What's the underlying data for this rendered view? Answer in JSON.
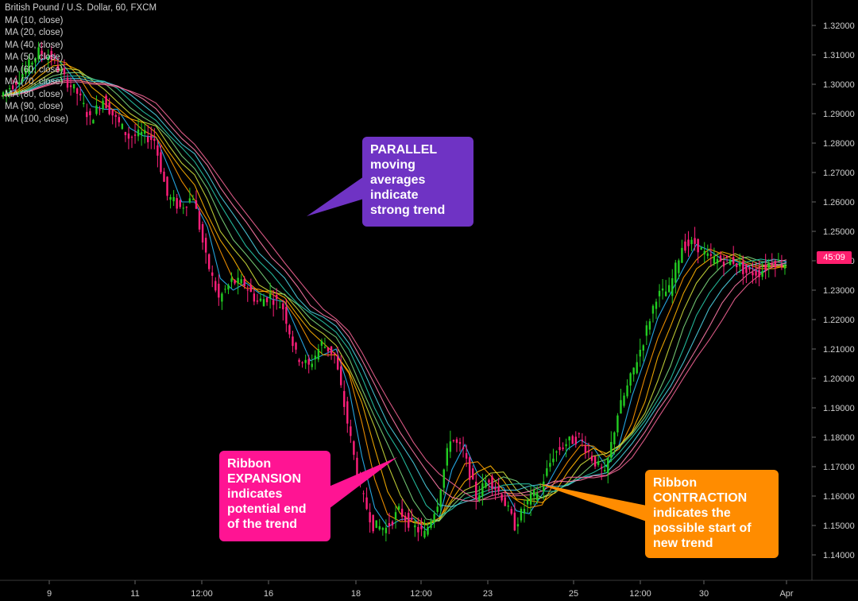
{
  "symbol_title": "British Pound / U.S. Dollar, 60, FXCM",
  "legend": [
    "MA (10, close)",
    "MA (20, close)",
    "MA (40, close)",
    "MA (50, close)",
    "MA (60, close)",
    "MA (70, close)",
    "MA (80, close)",
    "MA (90, close)",
    "MA (100, close)"
  ],
  "current_price_tag": "45:09",
  "annotations": {
    "parallel": [
      "PARALLEL",
      "moving",
      "averages",
      "indicate",
      "strong trend"
    ],
    "expansion": [
      "Ribbon",
      "EXPANSION",
      "indicates",
      "potential end",
      "of the trend"
    ],
    "contraction": [
      "Ribbon",
      "CONTRACTION",
      "indicates the",
      "possible start of",
      "new trend"
    ]
  },
  "colors": {
    "parallel_box": "#6f33c4",
    "expansion_box": "#ff1493",
    "contraction_box": "#ff8c00",
    "price_tag": "#ff1e6e",
    "candle_up": "#22cc22",
    "candle_down": "#ff1f7a"
  },
  "chart_data": {
    "type": "line",
    "title": "British Pound / U.S. Dollar, 60, FXCM",
    "x_tick_labels": [
      "9",
      "11",
      "12:00",
      "16",
      "18",
      "12:00",
      "23",
      "25",
      "12:00",
      "30",
      "Apr"
    ],
    "y_tick_labels": [
      "1.32000",
      "1.31000",
      "1.30000",
      "1.29000",
      "1.28000",
      "1.27000",
      "1.26000",
      "1.25000",
      "1.24000",
      "1.23000",
      "1.22000",
      "1.21000",
      "1.20000",
      "1.19000",
      "1.18000",
      "1.17000",
      "1.16000",
      "1.15000",
      "1.14000"
    ],
    "ylim": [
      1.134,
      1.325
    ],
    "grid": false,
    "price_close": [
      1.296,
      1.3,
      1.305,
      1.311,
      1.309,
      1.302,
      1.297,
      1.288,
      1.295,
      1.288,
      1.282,
      1.283,
      1.281,
      1.262,
      1.258,
      1.262,
      1.241,
      1.227,
      1.233,
      1.232,
      1.226,
      1.228,
      1.224,
      1.208,
      1.204,
      1.212,
      1.208,
      1.185,
      1.162,
      1.15,
      1.149,
      1.155,
      1.15,
      1.147,
      1.158,
      1.18,
      1.175,
      1.16,
      1.166,
      1.16,
      1.15,
      1.158,
      1.163,
      1.174,
      1.178,
      1.18,
      1.173,
      1.167,
      1.188,
      1.2,
      1.213,
      1.228,
      1.23,
      1.245,
      1.246,
      1.241,
      1.24,
      1.24,
      1.236,
      1.236,
      1.24,
      1.239
    ],
    "ma_series": [
      {
        "name": "MA (10, close)",
        "color": "#29b6f6",
        "lag": 1
      },
      {
        "name": "MA (20, close)",
        "color": "#ff9800",
        "lag": 2
      },
      {
        "name": "MA (40, close)",
        "color": "#ffb300",
        "lag": 3
      },
      {
        "name": "MA (50, close)",
        "color": "#cddc39",
        "lag": 4
      },
      {
        "name": "MA (60, close)",
        "color": "#7cd67c",
        "lag": 5
      },
      {
        "name": "MA (70, close)",
        "color": "#26c6a6",
        "lag": 6
      },
      {
        "name": "MA (80, close)",
        "color": "#4dd0e1",
        "lag": 7
      },
      {
        "name": "MA (90, close)",
        "color": "#ff7aa8",
        "lag": 8
      },
      {
        "name": "MA (100, close)",
        "color": "#f06292",
        "lag": 9
      }
    ]
  }
}
